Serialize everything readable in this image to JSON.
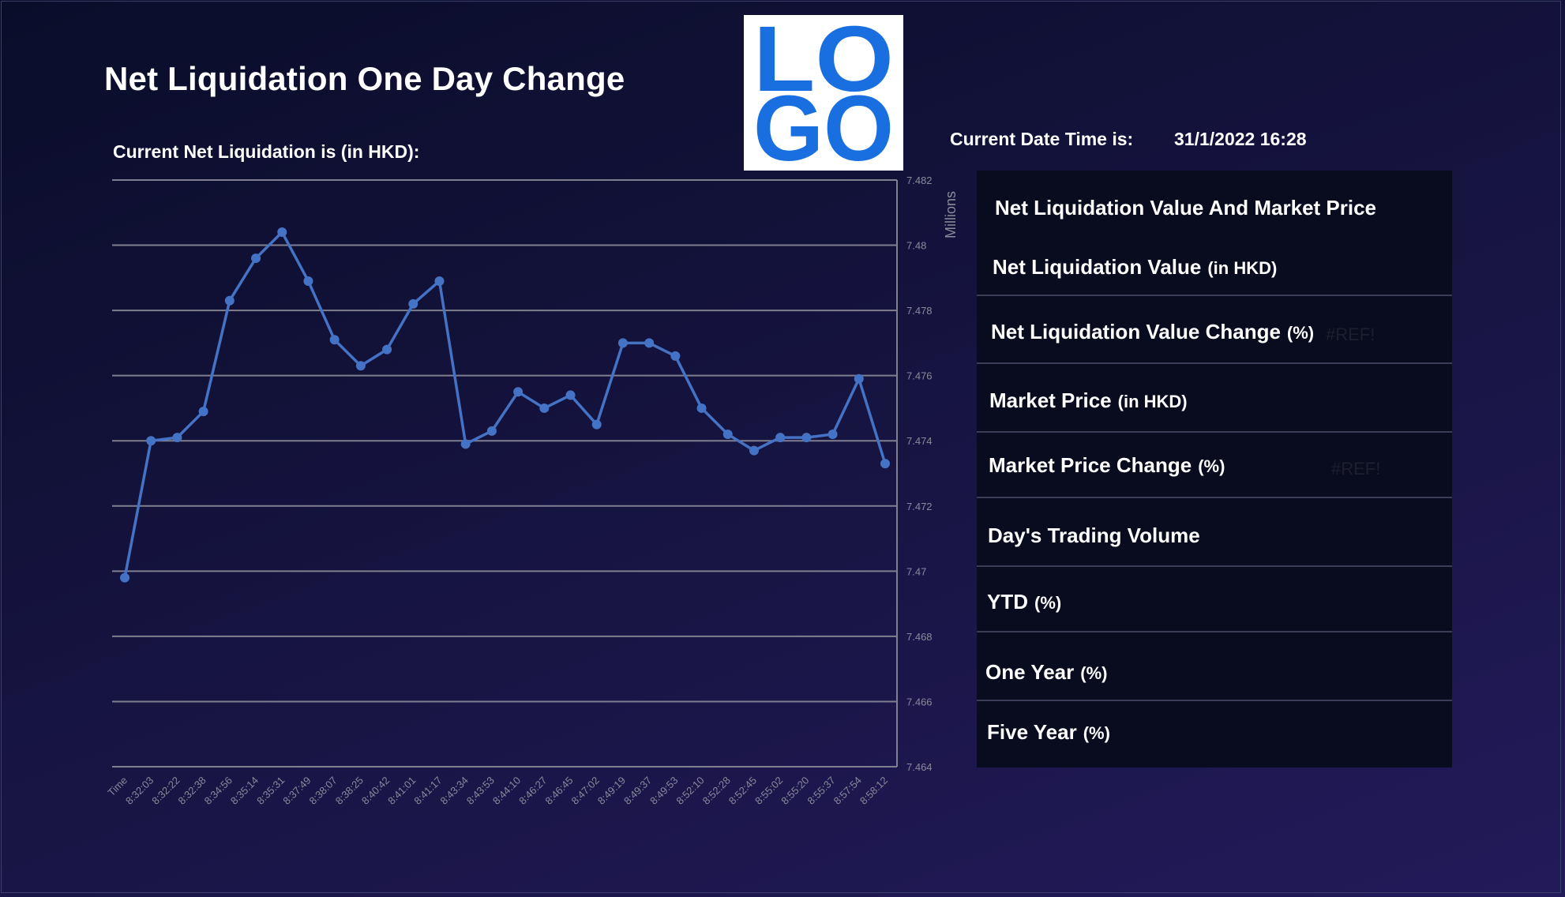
{
  "title": "Net Liquidation One Day Change",
  "subtitle": "Current Net Liquidation is (in HKD):",
  "logo": {
    "line1": "LO",
    "line2": "GO",
    "color": "#1a6fe0"
  },
  "datetime": {
    "label": "Current Date Time is:",
    "value": "31/1/2022 16:28"
  },
  "panel": {
    "heading": "Net Liquidation Value And Market Price",
    "rows": [
      {
        "label": "Net Liquidation Value",
        "unit": "(in HKD)"
      },
      {
        "label": "Net Liquidation Value Change",
        "unit": "(%)",
        "error": "#REF!"
      },
      {
        "label": "Market Price",
        "unit": "(in HKD)"
      },
      {
        "label": "Market Price Change",
        "unit": "(%)",
        "error": "#REF!"
      },
      {
        "label": "Day's Trading Volume",
        "unit": ""
      },
      {
        "label": "YTD",
        "unit": "(%)"
      },
      {
        "label": "One Year",
        "unit": "(%)"
      },
      {
        "label": "Five Year",
        "unit": "(%)"
      }
    ]
  },
  "colors": {
    "line": "#4472c4",
    "grid": "#7f7f8f",
    "axis_text": "#8a8a9a"
  },
  "chart_data": {
    "type": "line",
    "categories": [
      "Time",
      "8:32:03",
      "8:32:22",
      "8:32:38",
      "8:34:56",
      "8:35:14",
      "8:35:31",
      "8:37:49",
      "8:38:07",
      "8:38:25",
      "8:40:42",
      "8:41:01",
      "8:41:17",
      "8:43:34",
      "8:43:53",
      "8:44:10",
      "8:46:27",
      "8:46:45",
      "8:47:02",
      "8:49:19",
      "8:49:37",
      "8:49:53",
      "8:52:10",
      "8:52:28",
      "8:52:45",
      "8:55:02",
      "8:55:20",
      "8:55:37",
      "8:57:54",
      "8:58:12"
    ],
    "values": [
      7.4698,
      7.474,
      7.4741,
      7.4749,
      7.4783,
      7.4796,
      7.4804,
      7.4789,
      7.4771,
      7.4763,
      7.4768,
      7.4782,
      7.4789,
      7.4739,
      7.4743,
      7.4755,
      7.475,
      7.4754,
      7.4745,
      7.477,
      7.477,
      7.4766,
      7.475,
      7.4742,
      7.4737,
      7.4741,
      7.4741,
      7.4742,
      7.4759,
      7.4733
    ],
    "ylim": [
      7.464,
      7.482
    ],
    "yticks": [
      "7.464",
      "7.466",
      "7.468",
      "7.47",
      "7.472",
      "7.474",
      "7.476",
      "7.478",
      "7.48",
      "7.482"
    ],
    "ylabel": "Millions",
    "grid": true
  }
}
